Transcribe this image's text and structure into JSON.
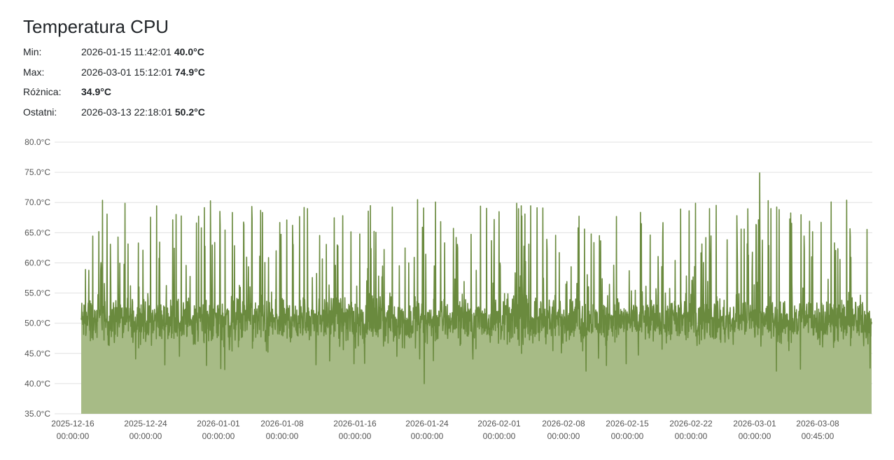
{
  "title": "Temperatura CPU",
  "stats": {
    "min": {
      "label": "Min:",
      "date": "2026-01-15 11:42:01",
      "value": "40.0°C"
    },
    "max": {
      "label": "Max:",
      "date": "2026-03-01 15:12:01",
      "value": "74.9°C"
    },
    "diff": {
      "label": "Różnica:",
      "value": "34.9°C"
    },
    "last": {
      "label": "Ostatni:",
      "date": "2026-03-13 22:18:01",
      "value": "50.2°C"
    }
  },
  "chart_data": {
    "type": "area",
    "title": "",
    "xlabel": "",
    "ylabel": "",
    "grid": true,
    "colors": {
      "line": "#6a8a3e",
      "fill": "#a7bb86",
      "grid": "#e1e1e1"
    },
    "ylim": [
      35,
      80
    ],
    "y_ticks": [
      "35.0°C",
      "40.0°C",
      "45.0°C",
      "50.0°C",
      "55.0°C",
      "60.0°C",
      "65.0°C",
      "70.0°C",
      "75.0°C",
      "80.0°C"
    ],
    "x_ticks": [
      {
        "date": "2025-12-16",
        "time": "00:00:00"
      },
      {
        "date": "2025-12-24",
        "time": "00:00:00"
      },
      {
        "date": "2026-01-01",
        "time": "00:00:00"
      },
      {
        "date": "2026-01-08",
        "time": "00:00:00"
      },
      {
        "date": "2026-01-16",
        "time": "00:00:00"
      },
      {
        "date": "2026-01-24",
        "time": "00:00:00"
      },
      {
        "date": "2026-02-01",
        "time": "00:00:00"
      },
      {
        "date": "2026-02-08",
        "time": "00:00:00"
      },
      {
        "date": "2026-02-15",
        "time": "00:00:00"
      },
      {
        "date": "2026-02-22",
        "time": "00:00:00"
      },
      {
        "date": "2026-03-01",
        "time": "00:00:00"
      },
      {
        "date": "2026-03-08",
        "time": "00:45:00"
      }
    ],
    "series": [
      {
        "x_range": [
          "2025-12-16 08:00",
          "2026-03-13 22:18"
        ],
        "baseline": 50.5,
        "noise": 2.6,
        "spike_rate": 0.09,
        "spike_max": 74.9,
        "min": 40.0,
        "max": 74.9,
        "last": 50.2
      }
    ]
  }
}
